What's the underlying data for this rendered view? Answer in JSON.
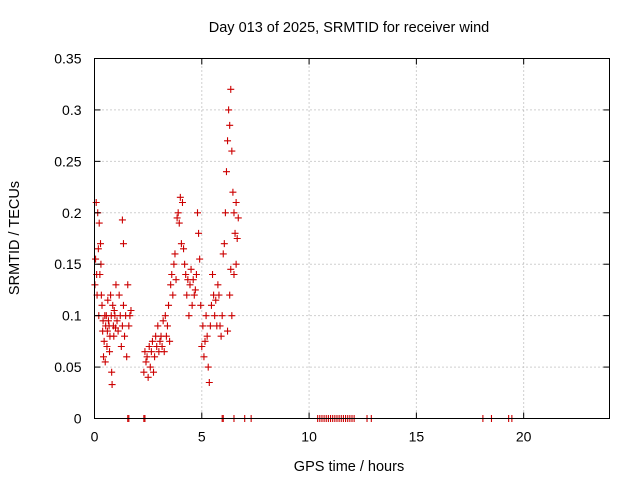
{
  "chart_data": {
    "type": "scatter",
    "title": "Day 013 of 2025, SRMTID for receiver wind",
    "xlabel": "GPS time / hours",
    "ylabel": "SRMTID / TECUs",
    "xlim": [
      0,
      24
    ],
    "ylim": [
      0,
      0.35
    ],
    "xticks": [
      0,
      5,
      10,
      15,
      20
    ],
    "xtick_labels": [
      "0",
      "5",
      "10",
      "15",
      "20"
    ],
    "yticks": [
      0,
      0.05,
      0.1,
      0.15,
      0.2,
      0.25,
      0.3,
      0.35
    ],
    "ytick_labels": [
      "0",
      "0.05",
      "0.1",
      "0.15",
      "0.2",
      "0.25",
      "0.3",
      "0.35"
    ],
    "grid": true,
    "marker": "plus",
    "series": [
      {
        "name": "SRMTID",
        "color": "#cc0000",
        "points": [
          [
            0.02,
            0.13
          ],
          [
            0.05,
            0.155
          ],
          [
            0.08,
            0.21
          ],
          [
            0.1,
            0.14
          ],
          [
            0.12,
            0.12
          ],
          [
            0.15,
            0.2
          ],
          [
            0.18,
            0.165
          ],
          [
            0.2,
            0.1
          ],
          [
            0.22,
            0.19
          ],
          [
            0.25,
            0.14
          ],
          [
            0.28,
            0.17
          ],
          [
            0.3,
            0.15
          ],
          [
            0.32,
            0.12
          ],
          [
            0.35,
            0.11
          ],
          [
            0.38,
            0.085
          ],
          [
            0.4,
            0.095
          ],
          [
            0.42,
            0.06
          ],
          [
            0.45,
            0.075
          ],
          [
            0.48,
            0.1
          ],
          [
            0.5,
            0.055
          ],
          [
            0.52,
            0.09
          ],
          [
            0.55,
            0.1
          ],
          [
            0.58,
            0.07
          ],
          [
            0.6,
            0.085
          ],
          [
            0.62,
            0.115
          ],
          [
            0.65,
            0.095
          ],
          [
            0.68,
            0.09
          ],
          [
            0.7,
            0.065
          ],
          [
            0.72,
            0.08
          ],
          [
            0.75,
            0.12
          ],
          [
            0.78,
            0.1
          ],
          [
            0.8,
            0.045
          ],
          [
            0.82,
            0.033
          ],
          [
            0.85,
            0.11
          ],
          [
            0.88,
            0.09
          ],
          [
            0.9,
            0.08
          ],
          [
            0.92,
            0.105
          ],
          [
            0.95,
            0.1
          ],
          [
            0.98,
            0.088
          ],
          [
            1.0,
            0.13
          ],
          [
            1.05,
            0.095
          ],
          [
            1.1,
            0.085
          ],
          [
            1.15,
            0.12
          ],
          [
            1.2,
            0.1
          ],
          [
            1.25,
            0.07
          ],
          [
            1.3,
            0.09
          ],
          [
            1.35,
            0.11
          ],
          [
            1.4,
            0.08
          ],
          [
            1.45,
            0.1
          ],
          [
            1.5,
            0.06
          ],
          [
            1.55,
            0.13
          ],
          [
            1.6,
            0.09
          ],
          [
            1.65,
            0.1
          ],
          [
            1.7,
            0.105
          ],
          [
            1.3,
            0.193
          ],
          [
            1.35,
            0.17
          ],
          [
            2.3,
            0.045
          ],
          [
            2.35,
            0.065
          ],
          [
            2.4,
            0.055
          ],
          [
            2.45,
            0.06
          ],
          [
            2.5,
            0.04
          ],
          [
            2.55,
            0.07
          ],
          [
            2.6,
            0.05
          ],
          [
            2.65,
            0.065
          ],
          [
            2.7,
            0.075
          ],
          [
            2.75,
            0.045
          ],
          [
            2.8,
            0.06
          ],
          [
            2.85,
            0.08
          ],
          [
            2.9,
            0.07
          ],
          [
            2.95,
            0.09
          ],
          [
            3.0,
            0.065
          ],
          [
            3.05,
            0.075
          ],
          [
            3.1,
            0.08
          ],
          [
            3.15,
            0.07
          ],
          [
            3.2,
            0.095
          ],
          [
            3.25,
            0.065
          ],
          [
            3.3,
            0.1
          ],
          [
            3.35,
            0.08
          ],
          [
            3.4,
            0.09
          ],
          [
            3.45,
            0.11
          ],
          [
            3.5,
            0.075
          ],
          [
            3.55,
            0.13
          ],
          [
            3.6,
            0.14
          ],
          [
            3.65,
            0.12
          ],
          [
            3.7,
            0.15
          ],
          [
            3.75,
            0.16
          ],
          [
            3.8,
            0.135
          ],
          [
            3.85,
            0.195
          ],
          [
            3.9,
            0.2
          ],
          [
            3.95,
            0.19
          ],
          [
            4.0,
            0.215
          ],
          [
            4.05,
            0.17
          ],
          [
            4.1,
            0.21
          ],
          [
            4.15,
            0.165
          ],
          [
            4.2,
            0.15
          ],
          [
            4.25,
            0.14
          ],
          [
            4.3,
            0.12
          ],
          [
            4.35,
            0.135
          ],
          [
            4.4,
            0.1
          ],
          [
            4.45,
            0.13
          ],
          [
            4.5,
            0.145
          ],
          [
            4.55,
            0.11
          ],
          [
            4.6,
            0.135
          ],
          [
            4.65,
            0.12
          ],
          [
            4.7,
            0.125
          ],
          [
            4.75,
            0.14
          ],
          [
            4.8,
            0.2
          ],
          [
            4.85,
            0.18
          ],
          [
            4.9,
            0.155
          ],
          [
            4.95,
            0.11
          ],
          [
            5.0,
            0.07
          ],
          [
            5.05,
            0.09
          ],
          [
            5.1,
            0.06
          ],
          [
            5.15,
            0.075
          ],
          [
            5.2,
            0.1
          ],
          [
            5.25,
            0.08
          ],
          [
            5.3,
            0.05
          ],
          [
            5.35,
            0.035
          ],
          [
            5.4,
            0.09
          ],
          [
            5.45,
            0.11
          ],
          [
            5.5,
            0.14
          ],
          [
            5.55,
            0.12
          ],
          [
            5.6,
            0.1
          ],
          [
            5.65,
            0.115
          ],
          [
            5.7,
            0.09
          ],
          [
            5.75,
            0.13
          ],
          [
            5.8,
            0.12
          ],
          [
            5.85,
            0.09
          ],
          [
            5.9,
            0.08
          ],
          [
            5.95,
            0.1
          ],
          [
            6.0,
            0.16
          ],
          [
            6.05,
            0.17
          ],
          [
            6.1,
            0.2
          ],
          [
            6.15,
            0.24
          ],
          [
            6.2,
            0.27
          ],
          [
            6.25,
            0.3
          ],
          [
            6.3,
            0.285
          ],
          [
            6.35,
            0.32
          ],
          [
            6.4,
            0.26
          ],
          [
            6.45,
            0.22
          ],
          [
            6.5,
            0.2
          ],
          [
            6.55,
            0.18
          ],
          [
            6.6,
            0.15
          ],
          [
            6.3,
            0.12
          ],
          [
            6.4,
            0.1
          ],
          [
            6.5,
            0.14
          ],
          [
            6.6,
            0.21
          ],
          [
            6.65,
            0.175
          ],
          [
            6.7,
            0.195
          ],
          [
            6.2,
            0.085
          ],
          [
            6.35,
            0.145
          ],
          [
            1.55,
            0.0
          ],
          [
            1.6,
            0.0
          ],
          [
            2.3,
            0.0
          ],
          [
            2.35,
            0.0
          ],
          [
            5.95,
            0.0
          ],
          [
            6.0,
            0.0
          ],
          [
            6.5,
            0.0
          ],
          [
            7.0,
            0.0
          ],
          [
            7.3,
            0.0
          ],
          [
            10.4,
            0.0
          ],
          [
            10.5,
            0.0
          ],
          [
            10.6,
            0.0
          ],
          [
            10.7,
            0.0
          ],
          [
            10.8,
            0.0
          ],
          [
            10.9,
            0.0
          ],
          [
            11.0,
            0.0
          ],
          [
            11.1,
            0.0
          ],
          [
            11.2,
            0.0
          ],
          [
            11.3,
            0.0
          ],
          [
            11.4,
            0.0
          ],
          [
            11.5,
            0.0
          ],
          [
            11.6,
            0.0
          ],
          [
            11.7,
            0.0
          ],
          [
            11.8,
            0.0
          ],
          [
            11.9,
            0.0
          ],
          [
            12.0,
            0.0
          ],
          [
            12.1,
            0.0
          ],
          [
            12.7,
            0.0
          ],
          [
            12.9,
            0.0
          ],
          [
            18.1,
            0.0
          ],
          [
            18.5,
            0.0
          ],
          [
            19.3,
            0.0
          ],
          [
            19.45,
            0.0
          ]
        ]
      }
    ]
  }
}
